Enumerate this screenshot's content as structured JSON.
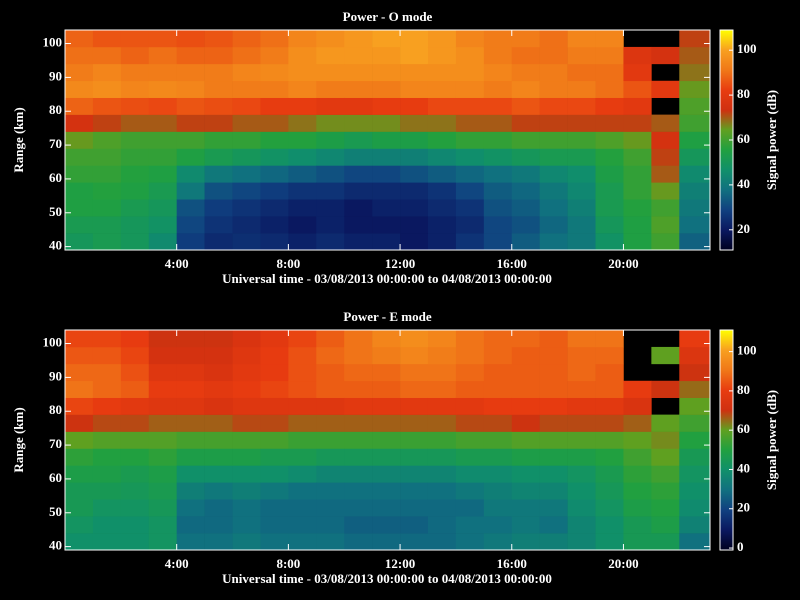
{
  "chart_data": [
    {
      "type": "heatmap",
      "title": "Power - O mode",
      "xlabel": "Universal time - 03/08/2013 00:00:00 to 04/08/2013 00:00:00",
      "ylabel": "Range (km)",
      "colorbar_label": "Signal power (dB)",
      "xlim": [
        0,
        23.1
      ],
      "ylim": [
        39,
        104
      ],
      "clim": [
        11,
        109
      ],
      "xticks": [
        {
          "value": 4,
          "label": "4:00"
        },
        {
          "value": 8,
          "label": "8:00"
        },
        {
          "value": 12,
          "label": "12:00"
        },
        {
          "value": 16,
          "label": "16:00"
        },
        {
          "value": 20,
          "label": "20:00"
        }
      ],
      "yticks": [
        40,
        50,
        60,
        70,
        80,
        90,
        100
      ],
      "cticks": [
        20,
        40,
        60,
        80,
        100
      ],
      "colormap": [
        "#000020",
        "#0a1860",
        "#104080",
        "#107080",
        "#10906a",
        "#20a040",
        "#60a020",
        "#d03010",
        "#e83c10",
        "#f07818",
        "#f8a020",
        "#ffff00"
      ],
      "x_edges": [
        0,
        1,
        2,
        3,
        4,
        5,
        6,
        7,
        8,
        9,
        10,
        11,
        12,
        13,
        14,
        15,
        16,
        17,
        18,
        19,
        20,
        21,
        22,
        23.1
      ],
      "y_edges": [
        39,
        44,
        49,
        54,
        59,
        64,
        69,
        74,
        79,
        84,
        89,
        94,
        99,
        104
      ],
      "z": [
        [
          50,
          52,
          55,
          55,
          58,
          60,
          65,
          75,
          88,
          95,
          92,
          90,
          88
        ],
        [
          52,
          52,
          55,
          56,
          58,
          60,
          62,
          72,
          86,
          96,
          94,
          90,
          86
        ],
        [
          50,
          50,
          52,
          55,
          56,
          58,
          60,
          70,
          85,
          94,
          92,
          88,
          86
        ],
        [
          45,
          48,
          50,
          52,
          55,
          58,
          60,
          70,
          84,
          95,
          92,
          90,
          86
        ],
        [
          28,
          30,
          32,
          40,
          45,
          55,
          60,
          72,
          86,
          94,
          92,
          88,
          85
        ],
        [
          24,
          26,
          28,
          32,
          40,
          52,
          58,
          72,
          85,
          92,
          92,
          88,
          86
        ],
        [
          25,
          24,
          26,
          30,
          38,
          50,
          58,
          70,
          84,
          92,
          94,
          90,
          88
        ],
        [
          24,
          22,
          24,
          28,
          36,
          48,
          56,
          70,
          82,
          92,
          95,
          92,
          90
        ],
        [
          22,
          20,
          22,
          26,
          34,
          46,
          56,
          68,
          82,
          94,
          96,
          96,
          94
        ],
        [
          24,
          22,
          22,
          26,
          32,
          44,
          54,
          66,
          80,
          92,
          96,
          98,
          96
        ],
        [
          22,
          20,
          20,
          24,
          30,
          42,
          52,
          66,
          80,
          92,
          96,
          98,
          98
        ],
        [
          22,
          20,
          22,
          24,
          30,
          42,
          54,
          66,
          82,
          92,
          96,
          98,
          100
        ],
        [
          20,
          20,
          22,
          24,
          32,
          42,
          54,
          68,
          82,
          94,
          96,
          100,
          100
        ],
        [
          22,
          22,
          24,
          26,
          34,
          44,
          56,
          68,
          84,
          94,
          96,
          98,
          98
        ],
        [
          26,
          24,
          26,
          30,
          36,
          46,
          58,
          70,
          84,
          94,
          96,
          96,
          94
        ],
        [
          30,
          30,
          32,
          34,
          38,
          48,
          58,
          70,
          84,
          92,
          94,
          92,
          92
        ],
        [
          34,
          32,
          34,
          36,
          40,
          50,
          60,
          72,
          86,
          94,
          92,
          90,
          92
        ],
        [
          38,
          36,
          38,
          40,
          44,
          52,
          60,
          72,
          84,
          92,
          92,
          90,
          90
        ],
        [
          40,
          40,
          42,
          44,
          46,
          52,
          60,
          72,
          84,
          92,
          90,
          92,
          94
        ],
        [
          48,
          50,
          52,
          52,
          54,
          56,
          62,
          72,
          82,
          90,
          90,
          92,
          94
        ],
        [
          55,
          55,
          56,
          58,
          58,
          60,
          65,
          72,
          80,
          86,
          80,
          78,
          null
        ],
        [
          60,
          62,
          60,
          65,
          70,
          72,
          75,
          70,
          null,
          80,
          null,
          75,
          null
        ],
        [
          35,
          38,
          40,
          42,
          45,
          50,
          55,
          60,
          62,
          65,
          68,
          70,
          72
        ]
      ]
    },
    {
      "type": "heatmap",
      "title": "Power - E mode",
      "xlabel": "Universal time - 03/08/2013 00:00:00 to 04/08/2013 00:00:00",
      "ylabel": "Range (km)",
      "colorbar_label": "Signal power (dB)",
      "xlim": [
        0,
        23.1
      ],
      "ylim": [
        39,
        104
      ],
      "clim": [
        -1,
        111
      ],
      "xticks": [
        {
          "value": 4,
          "label": "4:00"
        },
        {
          "value": 8,
          "label": "8:00"
        },
        {
          "value": 12,
          "label": "12:00"
        },
        {
          "value": 16,
          "label": "16:00"
        },
        {
          "value": 20,
          "label": "20:00"
        }
      ],
      "yticks": [
        40,
        50,
        60,
        70,
        80,
        90,
        100
      ],
      "cticks": [
        0,
        20,
        40,
        60,
        80,
        100
      ],
      "colormap": [
        "#000020",
        "#0a1860",
        "#104080",
        "#107080",
        "#10906a",
        "#20a040",
        "#60a020",
        "#d03010",
        "#e83c10",
        "#f07818",
        "#f8a020",
        "#ffff00"
      ],
      "x_edges": [
        0,
        1,
        2,
        3,
        4,
        5,
        6,
        7,
        8,
        9,
        10,
        11,
        12,
        13,
        14,
        15,
        16,
        17,
        18,
        19,
        20,
        21,
        22,
        23.1
      ],
      "y_edges": [
        39,
        44,
        49,
        54,
        59,
        64,
        69,
        74,
        79,
        84,
        89,
        94,
        99,
        104
      ],
      "z": [
        [
          40,
          42,
          45,
          45,
          48,
          52,
          60,
          70,
          82,
          90,
          88,
          85,
          82
        ],
        [
          40,
          40,
          42,
          45,
          48,
          50,
          58,
          68,
          80,
          88,
          88,
          85,
          82
        ],
        [
          40,
          40,
          42,
          44,
          46,
          50,
          58,
          68,
          78,
          86,
          84,
          82,
          80
        ],
        [
          42,
          42,
          44,
          46,
          48,
          52,
          58,
          66,
          76,
          80,
          76,
          72,
          70
        ],
        [
          30,
          28,
          30,
          34,
          40,
          48,
          56,
          66,
          76,
          80,
          76,
          72,
          70
        ],
        [
          30,
          28,
          28,
          32,
          40,
          48,
          56,
          66,
          74,
          78,
          74,
          72,
          70
        ],
        [
          32,
          30,
          30,
          34,
          40,
          48,
          56,
          68,
          76,
          80,
          78,
          76,
          74
        ],
        [
          30,
          28,
          28,
          32,
          40,
          46,
          56,
          68,
          76,
          82,
          80,
          80,
          78
        ],
        [
          30,
          28,
          28,
          30,
          38,
          46,
          54,
          66,
          76,
          84,
          84,
          84,
          82
        ],
        [
          30,
          28,
          28,
          30,
          36,
          44,
          54,
          66,
          76,
          86,
          86,
          88,
          86
        ],
        [
          28,
          26,
          28,
          30,
          36,
          44,
          54,
          66,
          78,
          86,
          88,
          90,
          90
        ],
        [
          28,
          26,
          28,
          30,
          36,
          44,
          54,
          66,
          78,
          86,
          88,
          92,
          94
        ],
        [
          28,
          26,
          28,
          30,
          36,
          44,
          54,
          66,
          78,
          88,
          90,
          94,
          96
        ],
        [
          28,
          28,
          28,
          30,
          36,
          44,
          54,
          66,
          78,
          88,
          90,
          92,
          94
        ],
        [
          30,
          30,
          28,
          32,
          38,
          46,
          56,
          68,
          78,
          86,
          88,
          90,
          90
        ],
        [
          32,
          30,
          32,
          34,
          38,
          46,
          56,
          68,
          80,
          86,
          86,
          88,
          88
        ],
        [
          34,
          32,
          32,
          36,
          40,
          48,
          58,
          70,
          80,
          86,
          86,
          86,
          88
        ],
        [
          34,
          30,
          32,
          36,
          40,
          48,
          58,
          68,
          80,
          86,
          86,
          86,
          86
        ],
        [
          36,
          36,
          38,
          40,
          42,
          48,
          58,
          68,
          78,
          86,
          88,
          88,
          90
        ],
        [
          40,
          40,
          42,
          44,
          46,
          50,
          58,
          68,
          78,
          86,
          86,
          88,
          90
        ],
        [
          45,
          45,
          48,
          50,
          52,
          55,
          60,
          66,
          74,
          80,
          null,
          null,
          null
        ],
        [
          45,
          48,
          50,
          52,
          55,
          60,
          62,
          60,
          null,
          70,
          null,
          60,
          null
        ],
        [
          30,
          35,
          38,
          40,
          42,
          45,
          50,
          55,
          60,
          65,
          70,
          75,
          80
        ]
      ]
    }
  ]
}
